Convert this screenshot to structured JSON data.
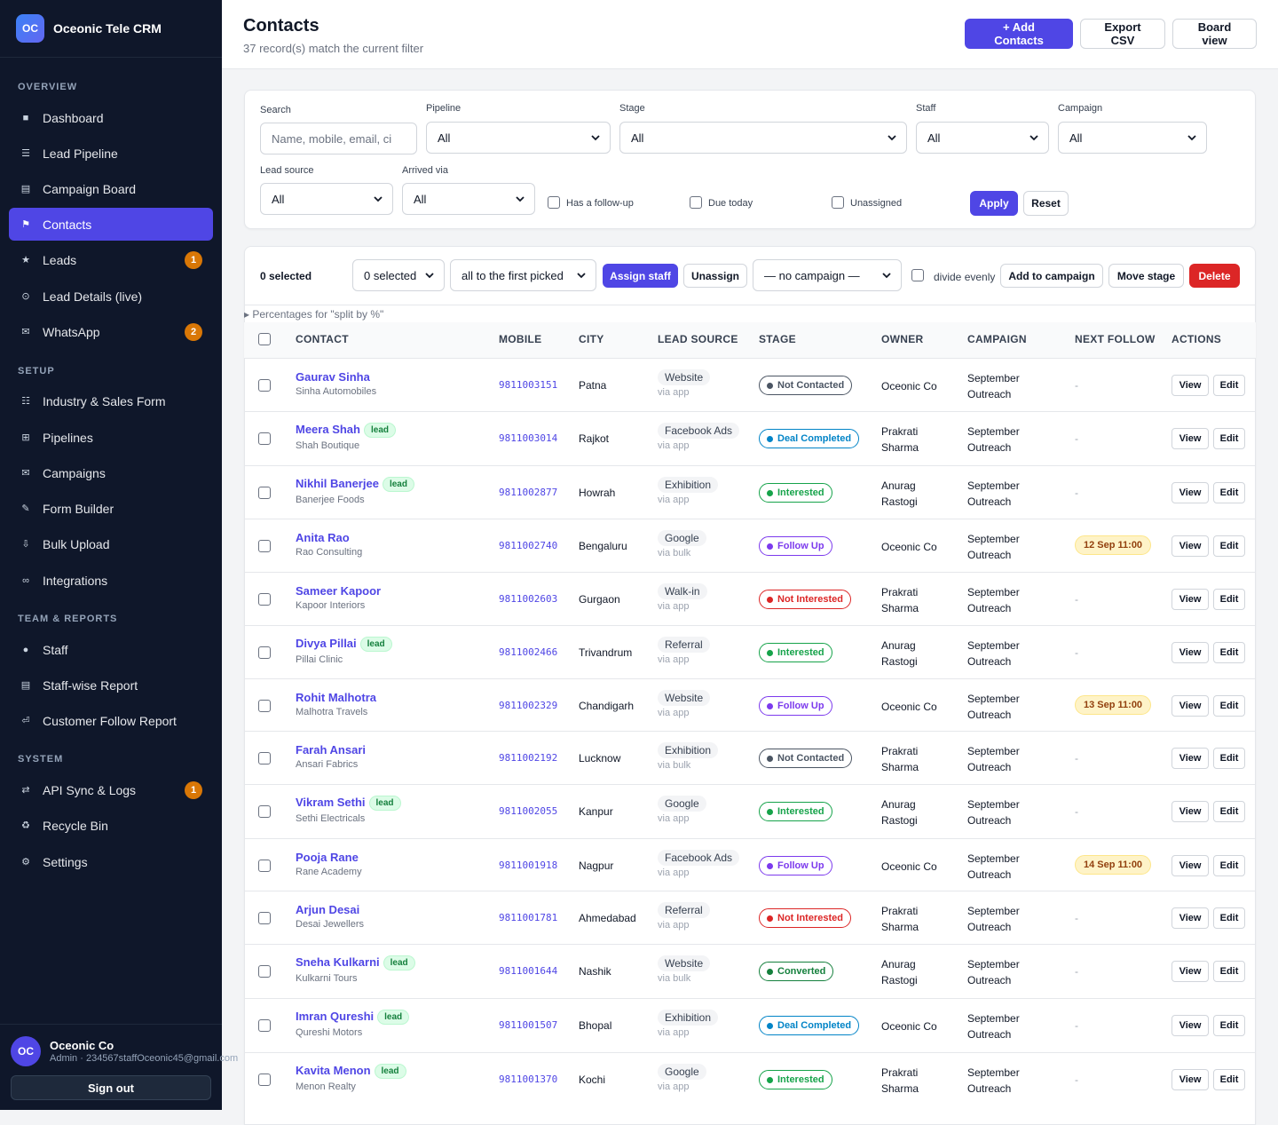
{
  "brand": {
    "logo": "OC",
    "name": "Oceonic Tele CRM"
  },
  "sidebar": {
    "sections": [
      {
        "label": "OVERVIEW"
      },
      {
        "label": "SETUP"
      },
      {
        "label": "TEAM & REPORTS"
      },
      {
        "label": "SYSTEM"
      }
    ],
    "items": [
      {
        "label": "Dashboard",
        "icon": "square-icon",
        "glyph": "■",
        "badge": ""
      },
      {
        "label": "Lead Pipeline",
        "icon": "list-icon",
        "glyph": "☰",
        "badge": ""
      },
      {
        "label": "Campaign Board",
        "icon": "board-icon",
        "glyph": "▤",
        "badge": ""
      },
      {
        "label": "Contacts",
        "icon": "flag-icon",
        "glyph": "⚑",
        "badge": "",
        "active": true
      },
      {
        "label": "Leads",
        "icon": "star-icon",
        "glyph": "★",
        "badge": "1"
      },
      {
        "label": "Lead Details (live)",
        "icon": "circle-icon",
        "glyph": "⊙",
        "badge": ""
      },
      {
        "label": "WhatsApp",
        "icon": "mail-icon",
        "glyph": "✉",
        "badge": "2"
      },
      {
        "label": "Industry & Sales Form",
        "icon": "people-icon",
        "glyph": "☷",
        "badge": ""
      },
      {
        "label": "Pipelines",
        "icon": "grid-icon",
        "glyph": "⊞",
        "badge": ""
      },
      {
        "label": "Campaigns",
        "icon": "mail-icon",
        "glyph": "✉",
        "badge": ""
      },
      {
        "label": "Form Builder",
        "icon": "pen-icon",
        "glyph": "✎",
        "badge": ""
      },
      {
        "label": "Bulk Upload",
        "icon": "download-icon",
        "glyph": "⇩",
        "badge": ""
      },
      {
        "label": "Integrations",
        "icon": "infinity-icon",
        "glyph": "∞",
        "badge": ""
      },
      {
        "label": "Staff",
        "icon": "dot-icon",
        "glyph": "●",
        "badge": ""
      },
      {
        "label": "Staff-wise Report",
        "icon": "report-icon",
        "glyph": "▤",
        "badge": ""
      },
      {
        "label": "Customer Follow Report",
        "icon": "followup-icon",
        "glyph": "⏎",
        "badge": ""
      },
      {
        "label": "API Sync & Logs",
        "icon": "sync-icon",
        "glyph": "⇄",
        "badge": "1"
      },
      {
        "label": "Recycle Bin",
        "icon": "recycle-icon",
        "glyph": "♻",
        "badge": ""
      },
      {
        "label": "Settings",
        "icon": "gear-icon",
        "glyph": "⚙",
        "badge": ""
      }
    ]
  },
  "user": {
    "initials": "OC",
    "name": "Oceonic Co",
    "role": "Admin · 234567staffOceonic45@gmail.com",
    "signout": "Sign out"
  },
  "header": {
    "title": "Contacts",
    "subtitle": "37 record(s) match the current filter",
    "add_label": "+ Add Contacts",
    "export_label": "Export CSV",
    "board_label": "Board view"
  },
  "filters": {
    "search_label": "Search",
    "search_placeholder": "Name, mobile, email, ci",
    "pipeline_label": "Pipeline",
    "pipeline_value": "All",
    "stage_label": "Stage",
    "stage_value": "All",
    "staff_label": "Staff",
    "staff_value": "All",
    "campaign_label": "Campaign",
    "campaign_value": "All",
    "lead_source_label": "Lead source",
    "lead_source_value": "All",
    "arrived_label": "Arrived via",
    "arrived_value": "All",
    "has_followup": "Has a follow-up",
    "due_today": "Due today",
    "unassigned": "Unassigned",
    "apply": "Apply",
    "reset": "Reset"
  },
  "bulk": {
    "selected_count": "0 selected",
    "selected_select": "0 selected",
    "assign_mode": "all to the first picked",
    "assign_staff": "Assign staff",
    "unassign": "Unassign",
    "campaign_select": "— no campaign —",
    "divide_evenly": "divide evenly",
    "add_to_campaign": "Add to campaign",
    "move_stage": "Move stage",
    "delete": "Delete",
    "percentages": "▸ Percentages for \"split by %\""
  },
  "table": {
    "columns": [
      "CONTACT",
      "MOBILE",
      "CITY",
      "LEAD SOURCE",
      "STAGE",
      "OWNER",
      "CAMPAIGN",
      "NEXT FOLLOW",
      "ACTIONS"
    ],
    "view_label": "View",
    "edit_label": "Edit",
    "rows": [
      {
        "name": "Gaurav Sinha",
        "lead": "",
        "company": "Sinha Automobiles",
        "mobile": "9811003151",
        "city": "Patna",
        "source": "Website",
        "via": "via app",
        "stage": "Not Contacted",
        "stage_color": "#4b5563",
        "owner1": "Oceonic Co",
        "owner2": "",
        "camp1": "September",
        "camp2": "Outreach",
        "follow": "-"
      },
      {
        "name": "Meera Shah",
        "lead": "lead",
        "company": "Shah Boutique",
        "mobile": "9811003014",
        "city": "Rajkot",
        "source": "Facebook Ads",
        "via": "via app",
        "stage": "Deal Completed",
        "stage_color": "#0284c7",
        "owner1": "Prakrati",
        "owner2": "Sharma",
        "camp1": "September",
        "camp2": "Outreach",
        "follow": "-"
      },
      {
        "name": "Nikhil Banerjee",
        "lead": "lead",
        "company": "Banerjee Foods",
        "mobile": "9811002877",
        "city": "Howrah",
        "source": "Exhibition",
        "via": "via app",
        "stage": "Interested",
        "stage_color": "#16a34a",
        "owner1": "Anurag",
        "owner2": "Rastogi",
        "camp1": "September",
        "camp2": "Outreach",
        "follow": "-"
      },
      {
        "name": "Anita Rao",
        "lead": "",
        "company": "Rao Consulting",
        "mobile": "9811002740",
        "city": "Bengaluru",
        "source": "Google",
        "via": "via bulk",
        "stage": "Follow Up",
        "stage_color": "#7c3aed",
        "owner1": "Oceonic Co",
        "owner2": "",
        "camp1": "September",
        "camp2": "Outreach",
        "follow": "12 Sep 11:00"
      },
      {
        "name": "Sameer Kapoor",
        "lead": "",
        "company": "Kapoor Interiors",
        "mobile": "9811002603",
        "city": "Gurgaon",
        "source": "Walk-in",
        "via": "via app",
        "stage": "Not Interested",
        "stage_color": "#dc2626",
        "owner1": "Prakrati",
        "owner2": "Sharma",
        "camp1": "September",
        "camp2": "Outreach",
        "follow": "-"
      },
      {
        "name": "Divya Pillai",
        "lead": "lead",
        "company": "Pillai Clinic",
        "mobile": "9811002466",
        "city": "Trivandrum",
        "source": "Referral",
        "via": "via app",
        "stage": "Interested",
        "stage_color": "#16a34a",
        "owner1": "Anurag",
        "owner2": "Rastogi",
        "camp1": "September",
        "camp2": "Outreach",
        "follow": "-"
      },
      {
        "name": "Rohit Malhotra",
        "lead": "",
        "company": "Malhotra Travels",
        "mobile": "9811002329",
        "city": "Chandigarh",
        "source": "Website",
        "via": "via app",
        "stage": "Follow Up",
        "stage_color": "#7c3aed",
        "owner1": "Oceonic Co",
        "owner2": "",
        "camp1": "September",
        "camp2": "Outreach",
        "follow": "13 Sep 11:00"
      },
      {
        "name": "Farah Ansari",
        "lead": "",
        "company": "Ansari Fabrics",
        "mobile": "9811002192",
        "city": "Lucknow",
        "source": "Exhibition",
        "via": "via bulk",
        "stage": "Not Contacted",
        "stage_color": "#4b5563",
        "owner1": "Prakrati",
        "owner2": "Sharma",
        "camp1": "September",
        "camp2": "Outreach",
        "follow": "-"
      },
      {
        "name": "Vikram Sethi",
        "lead": "lead",
        "company": "Sethi Electricals",
        "mobile": "9811002055",
        "city": "Kanpur",
        "source": "Google",
        "via": "via app",
        "stage": "Interested",
        "stage_color": "#16a34a",
        "owner1": "Anurag",
        "owner2": "Rastogi",
        "camp1": "September",
        "camp2": "Outreach",
        "follow": "-"
      },
      {
        "name": "Pooja Rane",
        "lead": "",
        "company": "Rane Academy",
        "mobile": "9811001918",
        "city": "Nagpur",
        "source": "Facebook Ads",
        "via": "via app",
        "stage": "Follow Up",
        "stage_color": "#7c3aed",
        "owner1": "Oceonic Co",
        "owner2": "",
        "camp1": "September",
        "camp2": "Outreach",
        "follow": "14 Sep 11:00"
      },
      {
        "name": "Arjun Desai",
        "lead": "",
        "company": "Desai Jewellers",
        "mobile": "9811001781",
        "city": "Ahmedabad",
        "source": "Referral",
        "via": "via app",
        "stage": "Not Interested",
        "stage_color": "#dc2626",
        "owner1": "Prakrati",
        "owner2": "Sharma",
        "camp1": "September",
        "camp2": "Outreach",
        "follow": "-"
      },
      {
        "name": "Sneha Kulkarni",
        "lead": "lead",
        "company": "Kulkarni Tours",
        "mobile": "9811001644",
        "city": "Nashik",
        "source": "Website",
        "via": "via bulk",
        "stage": "Converted",
        "stage_color": "#15803d",
        "owner1": "Anurag",
        "owner2": "Rastogi",
        "camp1": "September",
        "camp2": "Outreach",
        "follow": "-"
      },
      {
        "name": "Imran Qureshi",
        "lead": "lead",
        "company": "Qureshi Motors",
        "mobile": "9811001507",
        "city": "Bhopal",
        "source": "Exhibition",
        "via": "via app",
        "stage": "Deal Completed",
        "stage_color": "#0284c7",
        "owner1": "Oceonic Co",
        "owner2": "",
        "camp1": "September",
        "camp2": "Outreach",
        "follow": "-"
      },
      {
        "name": "Kavita Menon",
        "lead": "lead",
        "company": "Menon Realty",
        "mobile": "9811001370",
        "city": "Kochi",
        "source": "Google",
        "via": "via app",
        "stage": "Interested",
        "stage_color": "#16a34a",
        "owner1": "Prakrati",
        "owner2": "Sharma",
        "camp1": "September",
        "camp2": "Outreach",
        "follow": "-"
      }
    ]
  }
}
